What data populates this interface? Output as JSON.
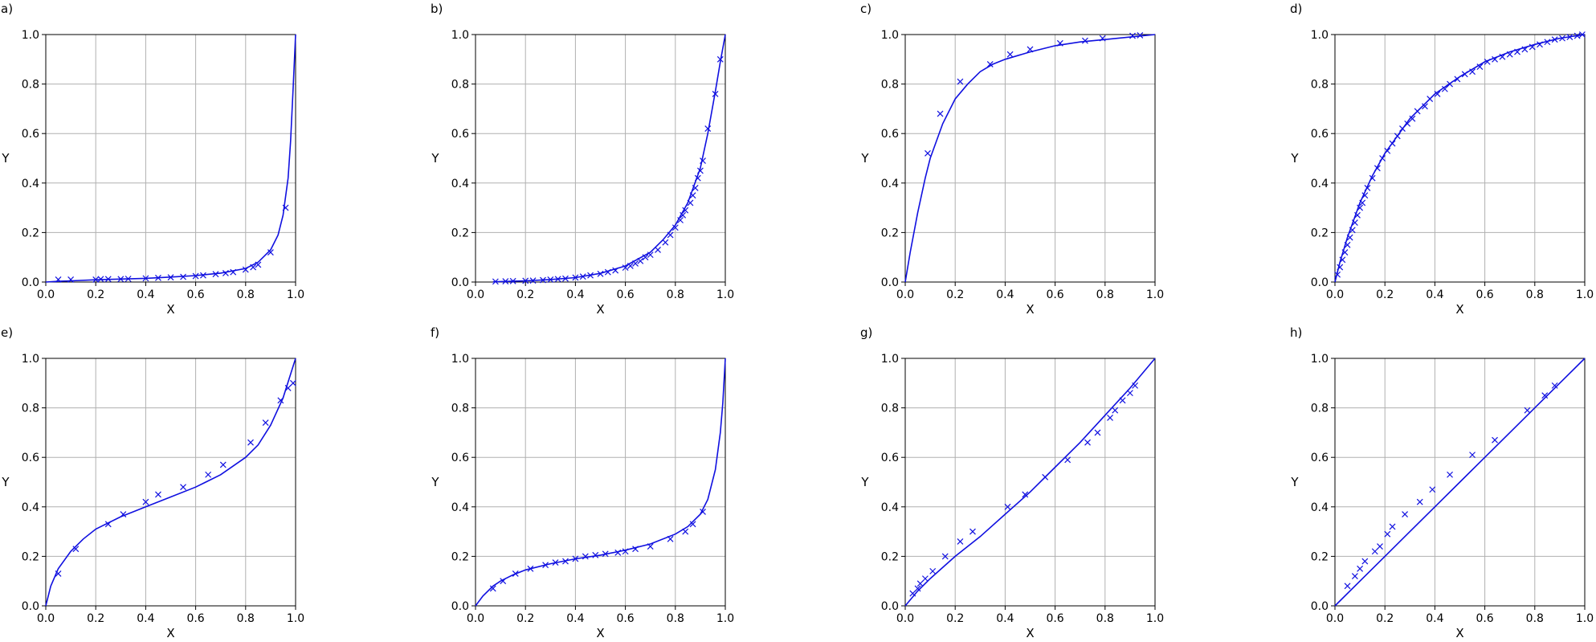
{
  "colors": {
    "series": "#1010e0",
    "grid": "#b0b0b0",
    "axis": "#000000"
  },
  "chart_data": [
    {
      "panel": "a)",
      "type": "line",
      "xlabel": "X",
      "ylabel": "Y",
      "xlim": [
        0,
        1
      ],
      "ylim": [
        0,
        1
      ],
      "grid": true,
      "xticks": [
        "0.0",
        "0.2",
        "0.4",
        "0.6",
        "0.8",
        "1.0"
      ],
      "yticks": [
        "0.0",
        "0.2",
        "0.4",
        "0.6",
        "0.8",
        "1.0"
      ],
      "curve": [
        [
          0,
          0
        ],
        [
          0.05,
          0.003
        ],
        [
          0.1,
          0.005
        ],
        [
          0.2,
          0.009
        ],
        [
          0.3,
          0.012
        ],
        [
          0.4,
          0.015
        ],
        [
          0.5,
          0.02
        ],
        [
          0.6,
          0.026
        ],
        [
          0.7,
          0.036
        ],
        [
          0.8,
          0.055
        ],
        [
          0.85,
          0.08
        ],
        [
          0.9,
          0.13
        ],
        [
          0.93,
          0.19
        ],
        [
          0.95,
          0.27
        ],
        [
          0.97,
          0.42
        ],
        [
          0.98,
          0.57
        ],
        [
          0.99,
          0.78
        ],
        [
          1.0,
          1.0
        ]
      ],
      "points": [
        [
          0.05,
          0.01
        ],
        [
          0.1,
          0.01
        ],
        [
          0.2,
          0.01
        ],
        [
          0.22,
          0.012
        ],
        [
          0.25,
          0.012
        ],
        [
          0.3,
          0.012
        ],
        [
          0.33,
          0.013
        ],
        [
          0.4,
          0.015
        ],
        [
          0.45,
          0.017
        ],
        [
          0.5,
          0.019
        ],
        [
          0.55,
          0.021
        ],
        [
          0.6,
          0.024
        ],
        [
          0.63,
          0.027
        ],
        [
          0.68,
          0.032
        ],
        [
          0.72,
          0.036
        ],
        [
          0.75,
          0.04
        ],
        [
          0.8,
          0.05
        ],
        [
          0.83,
          0.06
        ],
        [
          0.85,
          0.07
        ],
        [
          0.9,
          0.12
        ],
        [
          0.96,
          0.3
        ]
      ]
    },
    {
      "panel": "b)",
      "type": "line",
      "xlabel": "X",
      "ylabel": "Y",
      "xlim": [
        0,
        1
      ],
      "ylim": [
        0,
        1
      ],
      "grid": true,
      "xticks": [
        "0.0",
        "0.2",
        "0.4",
        "0.6",
        "0.8",
        "1.0"
      ],
      "yticks": [
        "0.0",
        "0.2",
        "0.4",
        "0.6",
        "0.8",
        "1.0"
      ],
      "curve": [
        [
          0.07,
          0.001
        ],
        [
          0.1,
          0.002
        ],
        [
          0.2,
          0.005
        ],
        [
          0.3,
          0.01
        ],
        [
          0.4,
          0.018
        ],
        [
          0.5,
          0.035
        ],
        [
          0.6,
          0.065
        ],
        [
          0.7,
          0.12
        ],
        [
          0.75,
          0.17
        ],
        [
          0.8,
          0.23
        ],
        [
          0.85,
          0.32
        ],
        [
          0.9,
          0.46
        ],
        [
          0.93,
          0.6
        ],
        [
          0.96,
          0.77
        ],
        [
          0.98,
          0.89
        ],
        [
          1.0,
          1.0
        ]
      ],
      "points": [
        [
          0.08,
          0.002
        ],
        [
          0.12,
          0.003
        ],
        [
          0.15,
          0.004
        ],
        [
          0.2,
          0.005
        ],
        [
          0.23,
          0.006
        ],
        [
          0.27,
          0.008
        ],
        [
          0.3,
          0.01
        ],
        [
          0.33,
          0.012
        ],
        [
          0.36,
          0.014
        ],
        [
          0.4,
          0.018
        ],
        [
          0.43,
          0.022
        ],
        [
          0.46,
          0.027
        ],
        [
          0.5,
          0.033
        ],
        [
          0.53,
          0.04
        ],
        [
          0.56,
          0.047
        ],
        [
          0.6,
          0.058
        ],
        [
          0.62,
          0.065
        ],
        [
          0.64,
          0.075
        ],
        [
          0.66,
          0.085
        ],
        [
          0.68,
          0.1
        ],
        [
          0.7,
          0.11
        ],
        [
          0.73,
          0.13
        ],
        [
          0.76,
          0.16
        ],
        [
          0.78,
          0.19
        ],
        [
          0.8,
          0.22
        ],
        [
          0.82,
          0.25
        ],
        [
          0.83,
          0.27
        ],
        [
          0.84,
          0.29
        ],
        [
          0.86,
          0.32
        ],
        [
          0.87,
          0.35
        ],
        [
          0.88,
          0.38
        ],
        [
          0.89,
          0.42
        ],
        [
          0.9,
          0.45
        ],
        [
          0.91,
          0.49
        ],
        [
          0.93,
          0.62
        ],
        [
          0.96,
          0.76
        ],
        [
          0.98,
          0.9
        ]
      ]
    },
    {
      "panel": "c)",
      "type": "line",
      "xlabel": "X",
      "ylabel": "Y",
      "xlim": [
        0,
        1
      ],
      "ylim": [
        0,
        1
      ],
      "grid": true,
      "xticks": [
        "0.0",
        "0.2",
        "0.4",
        "0.6",
        "0.8",
        "1.0"
      ],
      "yticks": [
        "0.0",
        "0.2",
        "0.4",
        "0.6",
        "0.8",
        "1.0"
      ],
      "curve": [
        [
          0,
          0
        ],
        [
          0.02,
          0.12
        ],
        [
          0.05,
          0.28
        ],
        [
          0.08,
          0.42
        ],
        [
          0.1,
          0.5
        ],
        [
          0.15,
          0.64
        ],
        [
          0.2,
          0.74
        ],
        [
          0.25,
          0.8
        ],
        [
          0.3,
          0.85
        ],
        [
          0.35,
          0.88
        ],
        [
          0.4,
          0.9
        ],
        [
          0.5,
          0.93
        ],
        [
          0.6,
          0.955
        ],
        [
          0.7,
          0.97
        ],
        [
          0.8,
          0.98
        ],
        [
          0.9,
          0.99
        ],
        [
          1.0,
          1.0
        ]
      ],
      "points": [
        [
          0.09,
          0.52
        ],
        [
          0.14,
          0.68
        ],
        [
          0.22,
          0.81
        ],
        [
          0.34,
          0.88
        ],
        [
          0.42,
          0.92
        ],
        [
          0.5,
          0.94
        ],
        [
          0.62,
          0.965
        ],
        [
          0.72,
          0.975
        ],
        [
          0.79,
          0.985
        ],
        [
          0.91,
          0.995
        ],
        [
          0.94,
          0.997
        ]
      ]
    },
    {
      "panel": "d)",
      "type": "line",
      "xlabel": "X",
      "ylabel": "Y",
      "xlim": [
        0,
        1
      ],
      "ylim": [
        0,
        1
      ],
      "grid": true,
      "xticks": [
        "0.0",
        "0.2",
        "0.4",
        "0.6",
        "0.8",
        "1.0"
      ],
      "yticks": [
        "0.0",
        "0.2",
        "0.4",
        "0.6",
        "0.8",
        "1.0"
      ],
      "curve": [
        [
          0,
          0
        ],
        [
          0.02,
          0.08
        ],
        [
          0.05,
          0.18
        ],
        [
          0.1,
          0.32
        ],
        [
          0.15,
          0.43
        ],
        [
          0.2,
          0.52
        ],
        [
          0.3,
          0.66
        ],
        [
          0.4,
          0.76
        ],
        [
          0.5,
          0.83
        ],
        [
          0.6,
          0.89
        ],
        [
          0.7,
          0.93
        ],
        [
          0.8,
          0.96
        ],
        [
          0.9,
          0.985
        ],
        [
          1.0,
          1.0
        ]
      ],
      "points": [
        [
          0.01,
          0.03
        ],
        [
          0.02,
          0.06
        ],
        [
          0.03,
          0.09
        ],
        [
          0.04,
          0.12
        ],
        [
          0.05,
          0.15
        ],
        [
          0.06,
          0.18
        ],
        [
          0.07,
          0.21
        ],
        [
          0.08,
          0.24
        ],
        [
          0.09,
          0.27
        ],
        [
          0.1,
          0.3
        ],
        [
          0.11,
          0.32
        ],
        [
          0.12,
          0.35
        ],
        [
          0.13,
          0.38
        ],
        [
          0.15,
          0.42
        ],
        [
          0.17,
          0.46
        ],
        [
          0.19,
          0.5
        ],
        [
          0.21,
          0.53
        ],
        [
          0.23,
          0.56
        ],
        [
          0.25,
          0.59
        ],
        [
          0.27,
          0.62
        ],
        [
          0.29,
          0.64
        ],
        [
          0.31,
          0.66
        ],
        [
          0.33,
          0.69
        ],
        [
          0.36,
          0.71
        ],
        [
          0.38,
          0.74
        ],
        [
          0.41,
          0.76
        ],
        [
          0.44,
          0.78
        ],
        [
          0.46,
          0.8
        ],
        [
          0.49,
          0.82
        ],
        [
          0.52,
          0.84
        ],
        [
          0.55,
          0.85
        ],
        [
          0.58,
          0.87
        ],
        [
          0.61,
          0.89
        ],
        [
          0.64,
          0.9
        ],
        [
          0.67,
          0.91
        ],
        [
          0.7,
          0.92
        ],
        [
          0.73,
          0.93
        ],
        [
          0.76,
          0.94
        ],
        [
          0.79,
          0.95
        ],
        [
          0.82,
          0.96
        ],
        [
          0.85,
          0.97
        ],
        [
          0.88,
          0.98
        ],
        [
          0.91,
          0.985
        ],
        [
          0.94,
          0.99
        ],
        [
          0.97,
          0.995
        ],
        [
          0.99,
          1.0
        ]
      ]
    },
    {
      "panel": "e)",
      "type": "line",
      "xlabel": "X",
      "ylabel": "Y",
      "xlim": [
        0,
        1
      ],
      "ylim": [
        0,
        1
      ],
      "grid": true,
      "xticks": [
        "0.0",
        "0.2",
        "0.4",
        "0.6",
        "0.8",
        "1.0"
      ],
      "yticks": [
        "0.0",
        "0.2",
        "0.4",
        "0.6",
        "0.8",
        "1.0"
      ],
      "curve": [
        [
          0,
          0
        ],
        [
          0.02,
          0.08
        ],
        [
          0.05,
          0.15
        ],
        [
          0.1,
          0.22
        ],
        [
          0.15,
          0.27
        ],
        [
          0.2,
          0.31
        ],
        [
          0.3,
          0.36
        ],
        [
          0.4,
          0.4
        ],
        [
          0.5,
          0.44
        ],
        [
          0.6,
          0.48
        ],
        [
          0.7,
          0.53
        ],
        [
          0.8,
          0.6
        ],
        [
          0.85,
          0.65
        ],
        [
          0.9,
          0.73
        ],
        [
          0.95,
          0.84
        ],
        [
          1.0,
          1.0
        ]
      ],
      "points": [
        [
          0.05,
          0.13
        ],
        [
          0.12,
          0.23
        ],
        [
          0.25,
          0.33
        ],
        [
          0.31,
          0.37
        ],
        [
          0.4,
          0.42
        ],
        [
          0.45,
          0.45
        ],
        [
          0.55,
          0.48
        ],
        [
          0.65,
          0.53
        ],
        [
          0.71,
          0.57
        ],
        [
          0.82,
          0.66
        ],
        [
          0.88,
          0.74
        ],
        [
          0.94,
          0.83
        ],
        [
          0.97,
          0.88
        ],
        [
          0.99,
          0.9
        ]
      ]
    },
    {
      "panel": "f)",
      "type": "line",
      "xlabel": "X",
      "ylabel": "Y",
      "xlim": [
        0,
        1
      ],
      "ylim": [
        0,
        1
      ],
      "grid": true,
      "xticks": [
        "0.0",
        "0.2",
        "0.4",
        "0.6",
        "0.8",
        "1.0"
      ],
      "yticks": [
        "0.0",
        "0.2",
        "0.4",
        "0.6",
        "0.8",
        "1.0"
      ],
      "curve": [
        [
          0,
          0
        ],
        [
          0.03,
          0.04
        ],
        [
          0.07,
          0.08
        ],
        [
          0.1,
          0.1
        ],
        [
          0.15,
          0.125
        ],
        [
          0.2,
          0.145
        ],
        [
          0.3,
          0.17
        ],
        [
          0.4,
          0.19
        ],
        [
          0.5,
          0.205
        ],
        [
          0.6,
          0.225
        ],
        [
          0.7,
          0.25
        ],
        [
          0.8,
          0.29
        ],
        [
          0.85,
          0.32
        ],
        [
          0.9,
          0.37
        ],
        [
          0.93,
          0.43
        ],
        [
          0.96,
          0.55
        ],
        [
          0.98,
          0.7
        ],
        [
          0.99,
          0.82
        ],
        [
          1.0,
          1.0
        ]
      ],
      "points": [
        [
          0.07,
          0.07
        ],
        [
          0.11,
          0.1
        ],
        [
          0.16,
          0.13
        ],
        [
          0.22,
          0.15
        ],
        [
          0.28,
          0.165
        ],
        [
          0.32,
          0.175
        ],
        [
          0.36,
          0.18
        ],
        [
          0.4,
          0.19
        ],
        [
          0.44,
          0.2
        ],
        [
          0.48,
          0.205
        ],
        [
          0.52,
          0.21
        ],
        [
          0.57,
          0.215
        ],
        [
          0.6,
          0.22
        ],
        [
          0.64,
          0.23
        ],
        [
          0.7,
          0.24
        ],
        [
          0.78,
          0.27
        ],
        [
          0.84,
          0.3
        ],
        [
          0.87,
          0.33
        ],
        [
          0.91,
          0.38
        ]
      ]
    },
    {
      "panel": "g)",
      "type": "line",
      "xlabel": "X",
      "ylabel": "Y",
      "xlim": [
        0,
        1
      ],
      "ylim": [
        0,
        1
      ],
      "grid": true,
      "xticks": [
        "0.0",
        "0.2",
        "0.4",
        "0.6",
        "0.8",
        "1.0"
      ],
      "yticks": [
        "0.0",
        "0.2",
        "0.4",
        "0.6",
        "0.8",
        "1.0"
      ],
      "curve": [
        [
          0,
          0
        ],
        [
          0.05,
          0.06
        ],
        [
          0.1,
          0.11
        ],
        [
          0.2,
          0.2
        ],
        [
          0.3,
          0.28
        ],
        [
          0.4,
          0.37
        ],
        [
          0.5,
          0.46
        ],
        [
          0.6,
          0.56
        ],
        [
          0.7,
          0.66
        ],
        [
          0.8,
          0.77
        ],
        [
          0.9,
          0.88
        ],
        [
          1.0,
          1.0
        ]
      ],
      "points": [
        [
          0.03,
          0.05
        ],
        [
          0.05,
          0.07
        ],
        [
          0.06,
          0.09
        ],
        [
          0.08,
          0.11
        ],
        [
          0.11,
          0.14
        ],
        [
          0.16,
          0.2
        ],
        [
          0.22,
          0.26
        ],
        [
          0.27,
          0.3
        ],
        [
          0.41,
          0.4
        ],
        [
          0.48,
          0.45
        ],
        [
          0.56,
          0.52
        ],
        [
          0.65,
          0.59
        ],
        [
          0.73,
          0.66
        ],
        [
          0.77,
          0.7
        ],
        [
          0.82,
          0.76
        ],
        [
          0.84,
          0.79
        ],
        [
          0.87,
          0.83
        ],
        [
          0.9,
          0.86
        ],
        [
          0.92,
          0.89
        ]
      ]
    },
    {
      "panel": "h)",
      "type": "line",
      "xlabel": "X",
      "ylabel": "Y",
      "xlim": [
        0,
        1
      ],
      "ylim": [
        0,
        1
      ],
      "grid": true,
      "xticks": [
        "0.0",
        "0.2",
        "0.4",
        "0.6",
        "0.8",
        "1.0"
      ],
      "yticks": [
        "0.0",
        "0.2",
        "0.4",
        "0.6",
        "0.8",
        "1.0"
      ],
      "curve": [
        [
          0,
          0
        ],
        [
          0.1,
          0.1
        ],
        [
          0.2,
          0.2
        ],
        [
          0.3,
          0.3
        ],
        [
          0.4,
          0.4
        ],
        [
          0.5,
          0.5
        ],
        [
          0.6,
          0.6
        ],
        [
          0.7,
          0.7
        ],
        [
          0.8,
          0.8
        ],
        [
          0.9,
          0.9
        ],
        [
          1.0,
          1.0
        ]
      ],
      "points": [
        [
          0.05,
          0.08
        ],
        [
          0.08,
          0.12
        ],
        [
          0.1,
          0.15
        ],
        [
          0.12,
          0.18
        ],
        [
          0.16,
          0.22
        ],
        [
          0.18,
          0.24
        ],
        [
          0.21,
          0.29
        ],
        [
          0.23,
          0.32
        ],
        [
          0.28,
          0.37
        ],
        [
          0.34,
          0.42
        ],
        [
          0.39,
          0.47
        ],
        [
          0.46,
          0.53
        ],
        [
          0.55,
          0.61
        ],
        [
          0.64,
          0.67
        ],
        [
          0.77,
          0.79
        ],
        [
          0.84,
          0.85
        ],
        [
          0.88,
          0.89
        ]
      ]
    }
  ]
}
